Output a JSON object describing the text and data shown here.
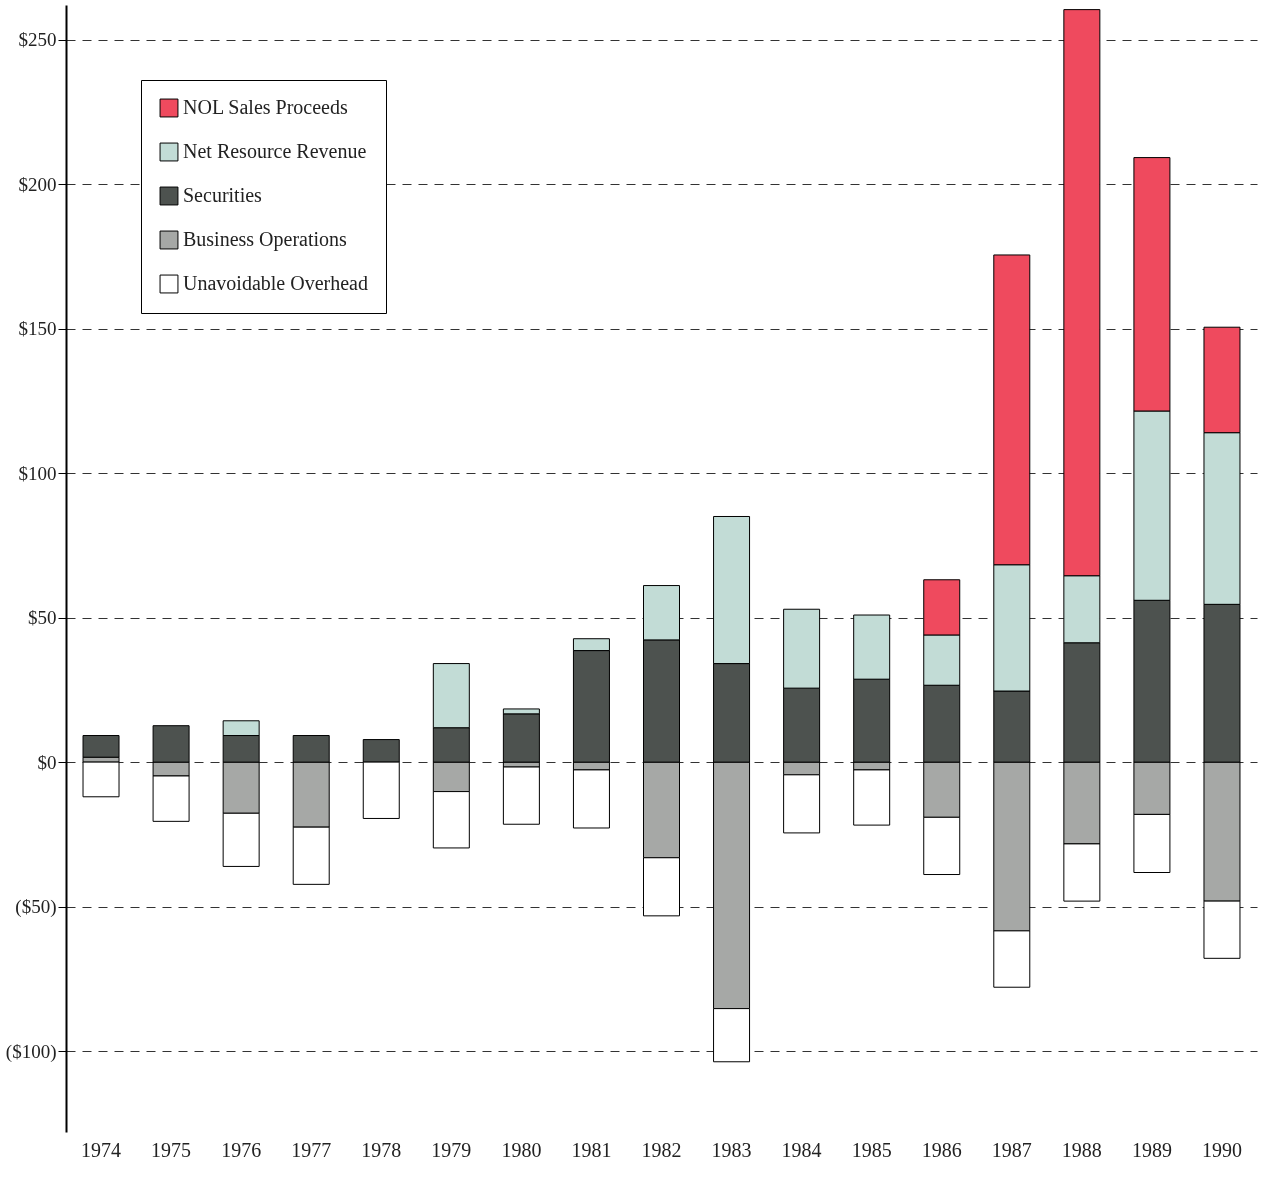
{
  "chart_data": {
    "type": "bar",
    "stacked": true,
    "categories": [
      "1974",
      "1975",
      "1976",
      "1977",
      "1978",
      "1979",
      "1980",
      "1981",
      "1982",
      "1983",
      "1984",
      "1985",
      "1986",
      "1987",
      "1988",
      "1989",
      "1990"
    ],
    "series": [
      {
        "name": "Business Operations",
        "color": "#a6a8a6",
        "values": [
          1.7,
          -4.8,
          -17.7,
          -22.5,
          null,
          -10.2,
          -1.7,
          -2.7,
          -33.1,
          -85.3,
          -4.4,
          -2.7,
          -19.1,
          -58.4,
          -28.3,
          -18.1,
          -48.1
        ]
      },
      {
        "name": "Securities",
        "color": "#4d524f",
        "values": [
          7.5,
          12.6,
          9.2,
          9.2,
          7.8,
          11.9,
          16.7,
          38.6,
          42.3,
          34.1,
          25.6,
          28.7,
          26.6,
          24.6,
          41.3,
          56,
          54.6
        ]
      },
      {
        "name": "Net Resource Revenue",
        "color": "#c2dcd6",
        "values": [
          null,
          null,
          5.1,
          null,
          null,
          22.2,
          1.7,
          4.1,
          18.8,
          50.9,
          27.3,
          22.2,
          17.4,
          43.7,
          23.2,
          65.5,
          59.4
        ]
      },
      {
        "name": "NOL Sales Proceeds",
        "color": "#ef4a5e",
        "values": [
          null,
          null,
          null,
          null,
          null,
          null,
          null,
          null,
          null,
          null,
          null,
          null,
          19.1,
          107.2,
          195.9,
          87.7,
          36.5
        ]
      },
      {
        "name": "Unavoidable Overhead",
        "color": "#ffffff",
        "values": [
          -12,
          -15.7,
          -18.4,
          -19.8,
          -19.5,
          -19.5,
          -19.8,
          -20.1,
          -20.1,
          -18.4,
          -20.1,
          -19.1,
          -19.8,
          -19.5,
          -19.8,
          -20.1,
          -19.8
        ]
      }
    ],
    "ylim": [
      -128,
      262
    ],
    "yticks": [
      {
        "value": -100,
        "label": "($100)"
      },
      {
        "value": -50,
        "label": "($50)"
      },
      {
        "value": 0,
        "label": "$0"
      },
      {
        "value": 50,
        "label": "$50"
      },
      {
        "value": 100,
        "label": "$100"
      },
      {
        "value": 150,
        "label": "$150"
      },
      {
        "value": 200,
        "label": "$200"
      },
      {
        "value": 250,
        "label": "$250"
      }
    ],
    "grid": "y",
    "legend": "top left"
  }
}
